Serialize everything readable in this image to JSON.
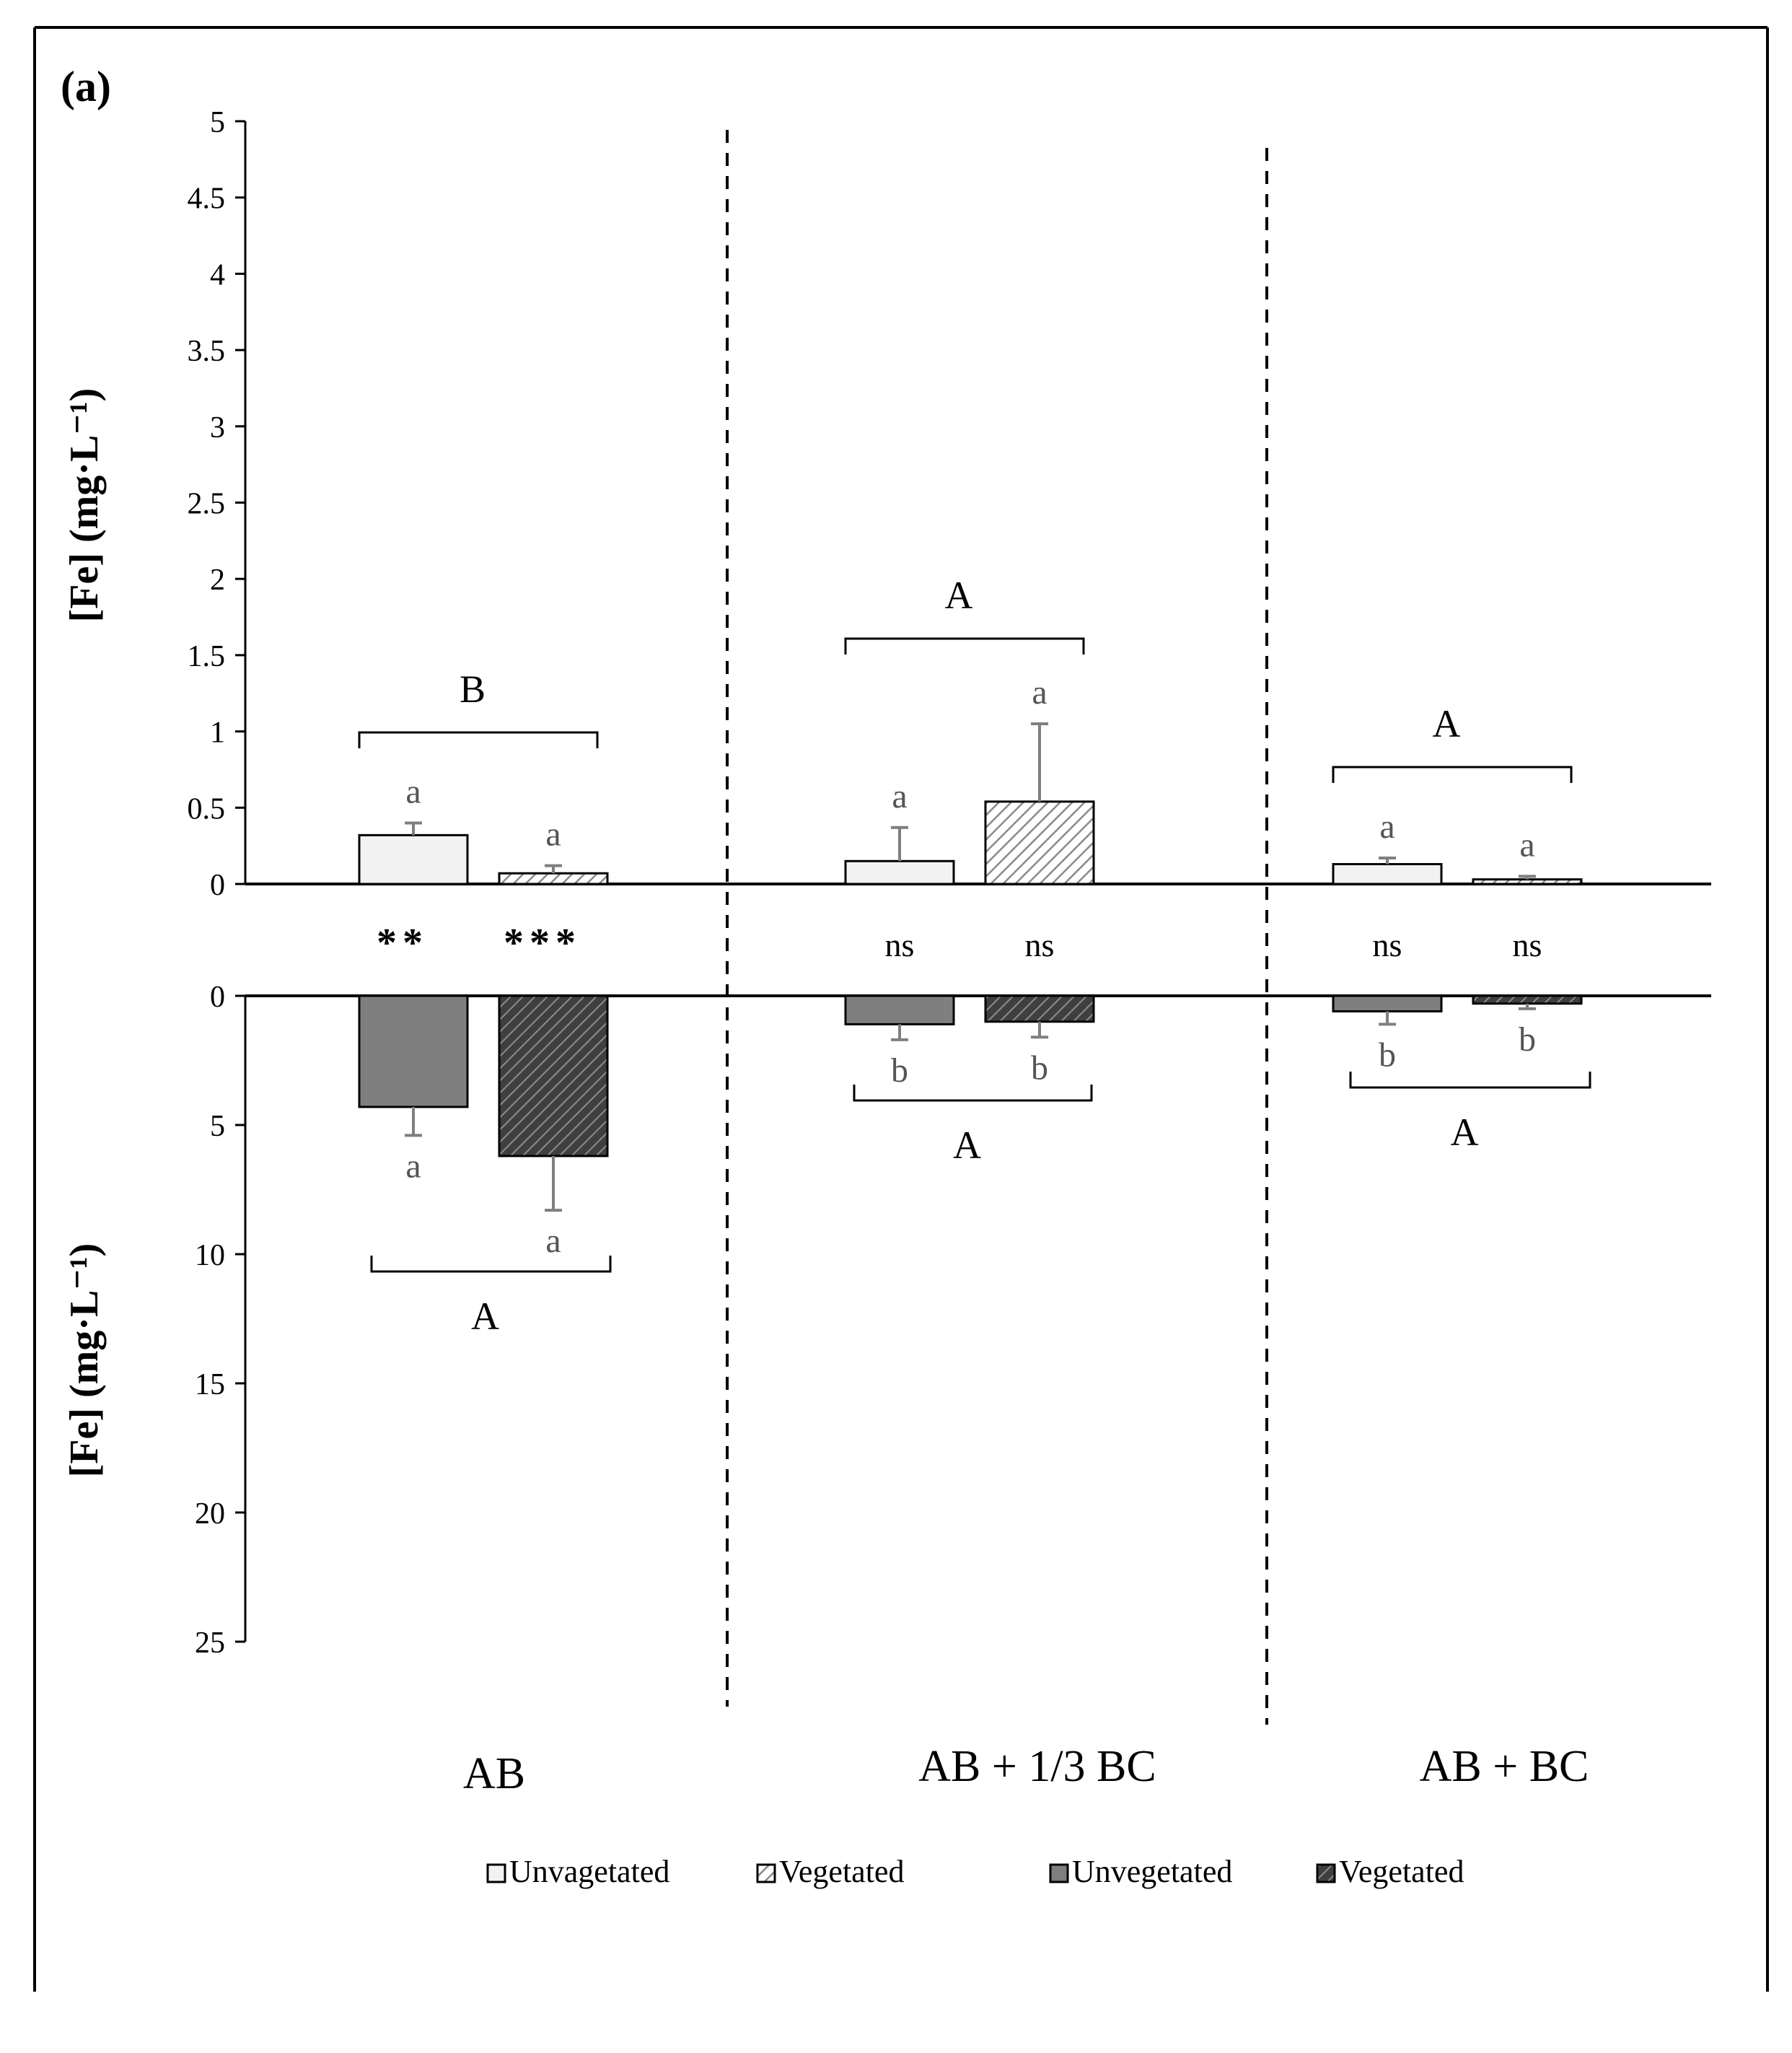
{
  "chart_data": {
    "type": "bar",
    "panel_label": "(a)",
    "ylabel_top": "[Fe] (mg·L⁻¹)",
    "ylabel_bottom": "[Fe] (mg·L⁻¹)",
    "categories": [
      "AB",
      "AB + 1/3 BC",
      "AB + BC"
    ],
    "top_axis": {
      "ylim": [
        0,
        5
      ],
      "ticks": [
        "0",
        "0.5",
        "1",
        "1.5",
        "2",
        "2.5",
        "3",
        "3.5",
        "4",
        "4.5",
        "5"
      ]
    },
    "bottom_axis": {
      "ylim": [
        0,
        25
      ],
      "inverted": true,
      "ticks": [
        "0",
        "5",
        "10",
        "15",
        "20",
        "25"
      ]
    },
    "top_series": [
      {
        "name": "Unvagetated",
        "values": [
          0.32,
          0.15,
          0.13
        ],
        "errors": [
          0.08,
          0.22,
          0.04
        ],
        "letters": [
          "a",
          "a",
          "a"
        ]
      },
      {
        "name": "Vegetated",
        "values": [
          0.07,
          0.54,
          0.03
        ],
        "errors": [
          0.05,
          0.51,
          0.02
        ],
        "letters": [
          "a",
          "a",
          "a"
        ]
      }
    ],
    "bottom_series": [
      {
        "name": "Unvegetated",
        "values": [
          4.3,
          1.1,
          0.6
        ],
        "errors": [
          1.1,
          0.6,
          0.5
        ],
        "letters": [
          "a",
          "b",
          "b"
        ]
      },
      {
        "name": "Vegetated",
        "values": [
          6.2,
          1.0,
          0.3
        ],
        "errors": [
          2.1,
          0.6,
          0.2
        ],
        "letters": [
          "a",
          "b",
          "b"
        ]
      }
    ],
    "top_group_letters": [
      "B",
      "A",
      "A"
    ],
    "bottom_group_letters": [
      "A",
      "A",
      "A"
    ],
    "significance": [
      [
        "**",
        "***"
      ],
      [
        "ns",
        "ns"
      ],
      [
        "ns",
        "ns"
      ]
    ],
    "legend": [
      "Unvagetated",
      "Vegetated",
      "Unvegetated",
      "Vegetated"
    ]
  },
  "colors": {
    "unveg_top": "#f2f2f2",
    "veg_top_hatch": "#7f7f7f",
    "unveg_bottom": "#7f7f7f",
    "veg_bottom": "#595959",
    "error": "#7f7f7f"
  }
}
